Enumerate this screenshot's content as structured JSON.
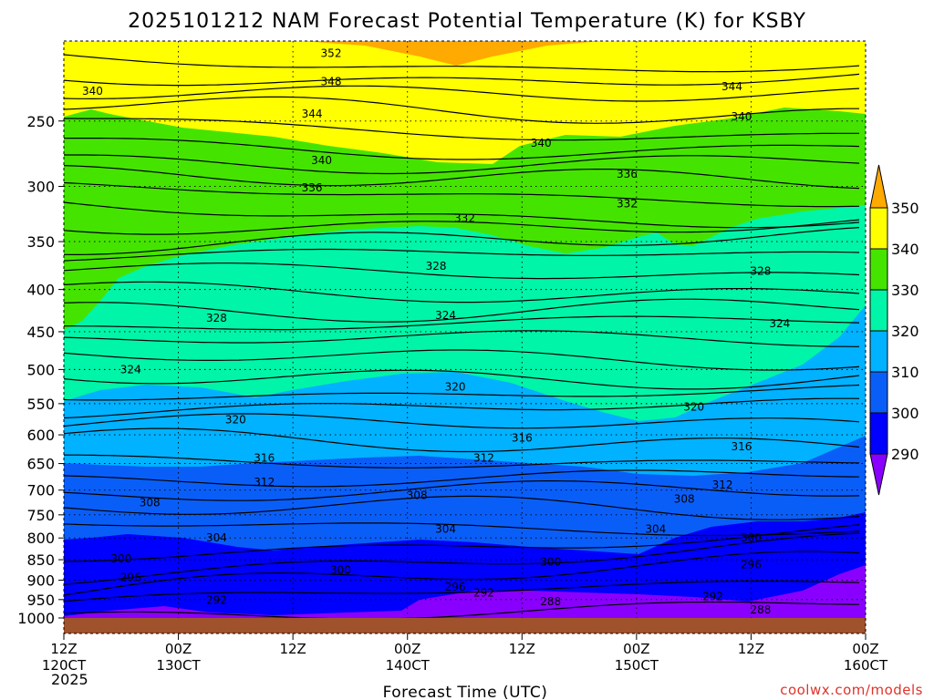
{
  "chart_data": {
    "type": "contour",
    "title": "2025101212 NAM Forecast Potential Temperature (K) for KSBY",
    "xlabel": "Forecast Time (UTC)",
    "ylabel": "",
    "credit": "coolwx.com/models",
    "year_label": "2025",
    "y_axis": {
      "scale": "log-pressure",
      "inverted": true,
      "range": [
        1000,
        200
      ],
      "ticks": [
        250,
        300,
        350,
        400,
        450,
        500,
        550,
        600,
        650,
        700,
        750,
        800,
        850,
        900,
        950,
        1000
      ]
    },
    "x_axis": {
      "range_hours": [
        0,
        84
      ],
      "ticks": [
        {
          "hour": 0,
          "top": "12Z",
          "bottom": "120CT"
        },
        {
          "hour": 12,
          "top": "00Z",
          "bottom": "130CT"
        },
        {
          "hour": 24,
          "top": "12Z",
          "bottom": ""
        },
        {
          "hour": 36,
          "top": "00Z",
          "bottom": "140CT"
        },
        {
          "hour": 48,
          "top": "12Z",
          "bottom": ""
        },
        {
          "hour": 60,
          "top": "00Z",
          "bottom": "150CT"
        },
        {
          "hour": 72,
          "top": "12Z",
          "bottom": ""
        },
        {
          "hour": 84,
          "top": "00Z",
          "bottom": "160CT"
        }
      ]
    },
    "colorbar": {
      "levels": [
        290,
        300,
        310,
        320,
        330,
        340,
        350
      ],
      "labels": [
        "290",
        "300",
        "310",
        "320",
        "330",
        "340",
        "350"
      ],
      "colors": [
        "#8a00ff",
        "#0000ff",
        "#0a5ef8",
        "#00b2ff",
        "#00f5a8",
        "#45e400",
        "#ffff00",
        "#ffaa00"
      ]
    },
    "contour_labels": [
      {
        "value": "352",
        "hour": 28,
        "hpa": 207
      },
      {
        "value": "348",
        "hour": 28,
        "hpa": 224
      },
      {
        "value": "344",
        "hour": 26,
        "hpa": 245
      },
      {
        "value": "344",
        "hour": 70,
        "hpa": 227
      },
      {
        "value": "340",
        "hour": 3,
        "hpa": 230
      },
      {
        "value": "340",
        "hour": 27,
        "hpa": 279
      },
      {
        "value": "340",
        "hour": 50,
        "hpa": 266
      },
      {
        "value": "340",
        "hour": 71,
        "hpa": 247
      },
      {
        "value": "336",
        "hour": 26,
        "hpa": 301
      },
      {
        "value": "336",
        "hour": 59,
        "hpa": 290
      },
      {
        "value": "332",
        "hour": 42,
        "hpa": 328
      },
      {
        "value": "332",
        "hour": 59,
        "hpa": 315
      },
      {
        "value": "328",
        "hour": 16,
        "hpa": 433
      },
      {
        "value": "328",
        "hour": 39,
        "hpa": 375
      },
      {
        "value": "328",
        "hour": 73,
        "hpa": 380
      },
      {
        "value": "324",
        "hour": 7,
        "hpa": 500
      },
      {
        "value": "324",
        "hour": 40,
        "hpa": 430
      },
      {
        "value": "324",
        "hour": 75,
        "hpa": 440
      },
      {
        "value": "320",
        "hour": 18,
        "hpa": 575
      },
      {
        "value": "320",
        "hour": 41,
        "hpa": 525
      },
      {
        "value": "320",
        "hour": 66,
        "hpa": 555
      },
      {
        "value": "316",
        "hour": 21,
        "hpa": 640
      },
      {
        "value": "316",
        "hour": 48,
        "hpa": 605
      },
      {
        "value": "316",
        "hour": 71,
        "hpa": 620
      },
      {
        "value": "312",
        "hour": 21,
        "hpa": 685
      },
      {
        "value": "312",
        "hour": 44,
        "hpa": 640
      },
      {
        "value": "312",
        "hour": 69,
        "hpa": 690
      },
      {
        "value": "308",
        "hour": 9,
        "hpa": 725
      },
      {
        "value": "308",
        "hour": 37,
        "hpa": 710
      },
      {
        "value": "308",
        "hour": 65,
        "hpa": 718
      },
      {
        "value": "304",
        "hour": 16,
        "hpa": 800
      },
      {
        "value": "304",
        "hour": 40,
        "hpa": 780
      },
      {
        "value": "304",
        "hour": 62,
        "hpa": 780
      },
      {
        "value": "300",
        "hour": 6,
        "hpa": 848
      },
      {
        "value": "300",
        "hour": 29,
        "hpa": 875
      },
      {
        "value": "300",
        "hour": 51,
        "hpa": 855
      },
      {
        "value": "300",
        "hour": 72,
        "hpa": 800
      },
      {
        "value": "296",
        "hour": 7,
        "hpa": 893
      },
      {
        "value": "296",
        "hour": 41,
        "hpa": 917
      },
      {
        "value": "296",
        "hour": 72,
        "hpa": 862
      },
      {
        "value": "292",
        "hour": 16,
        "hpa": 952
      },
      {
        "value": "292",
        "hour": 44,
        "hpa": 932
      },
      {
        "value": "292",
        "hour": 68,
        "hpa": 942
      },
      {
        "value": "288",
        "hour": 51,
        "hpa": 955
      },
      {
        "value": "288",
        "hour": 73,
        "hpa": 977
      }
    ]
  }
}
